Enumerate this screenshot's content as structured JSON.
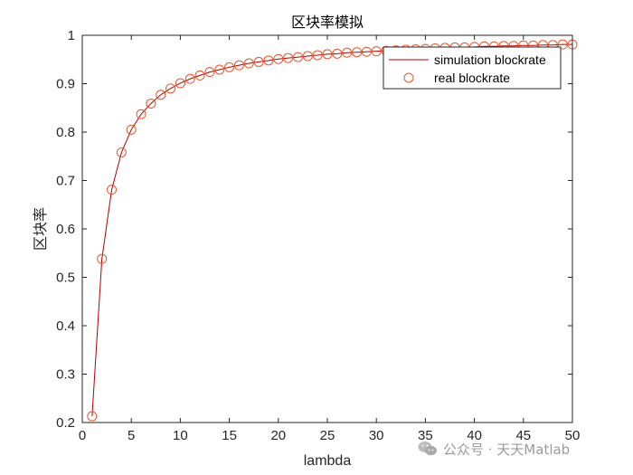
{
  "chart_data": {
    "type": "line",
    "title": "区块率模拟",
    "xlabel": "lambda",
    "ylabel": "区块率",
    "xlim": [
      0,
      50
    ],
    "ylim": [
      0.2,
      1
    ],
    "xticks": [
      "0",
      "5",
      "10",
      "15",
      "20",
      "25",
      "30",
      "35",
      "40",
      "45",
      "50"
    ],
    "yticks": [
      "0.2",
      "0.3",
      "0.4",
      "0.5",
      "0.6",
      "0.7",
      "0.8",
      "0.9",
      "1"
    ],
    "grid": false,
    "legend_position": "top-right",
    "x": [
      1,
      2,
      3,
      4,
      5,
      6,
      7,
      8,
      9,
      10,
      11,
      12,
      13,
      14,
      15,
      16,
      17,
      18,
      19,
      20,
      21,
      22,
      23,
      24,
      25,
      26,
      27,
      28,
      29,
      30,
      31,
      32,
      33,
      34,
      35,
      36,
      37,
      38,
      39,
      40,
      41,
      42,
      43,
      44,
      45,
      46,
      47,
      48,
      49,
      50
    ],
    "series": [
      {
        "name": "simulation blockrate",
        "style": "line",
        "color": "#b30000",
        "values": [
          0.213,
          0.538,
          0.681,
          0.758,
          0.805,
          0.837,
          0.859,
          0.877,
          0.89,
          0.901,
          0.91,
          0.917,
          0.924,
          0.929,
          0.934,
          0.938,
          0.942,
          0.945,
          0.948,
          0.951,
          0.953,
          0.955,
          0.957,
          0.959,
          0.961,
          0.962,
          0.964,
          0.965,
          0.966,
          0.967,
          0.968,
          0.969,
          0.97,
          0.971,
          0.972,
          0.973,
          0.974,
          0.975,
          0.975,
          0.976,
          0.977,
          0.977,
          0.978,
          0.978,
          0.979,
          0.979,
          0.98,
          0.98,
          0.981,
          0.981
        ]
      },
      {
        "name": "real blockrate",
        "style": "marker-circle",
        "color": "#e8542b",
        "values": [
          0.213,
          0.538,
          0.681,
          0.758,
          0.805,
          0.837,
          0.859,
          0.877,
          0.89,
          0.901,
          0.91,
          0.917,
          0.924,
          0.929,
          0.934,
          0.938,
          0.942,
          0.945,
          0.948,
          0.951,
          0.953,
          0.955,
          0.957,
          0.959,
          0.961,
          0.962,
          0.964,
          0.965,
          0.966,
          0.967,
          0.968,
          0.969,
          0.97,
          0.971,
          0.972,
          0.973,
          0.974,
          0.975,
          0.975,
          0.976,
          0.977,
          0.977,
          0.978,
          0.978,
          0.979,
          0.979,
          0.98,
          0.98,
          0.981,
          0.981
        ]
      }
    ]
  },
  "watermark": "公众号 · 天天Matlab"
}
